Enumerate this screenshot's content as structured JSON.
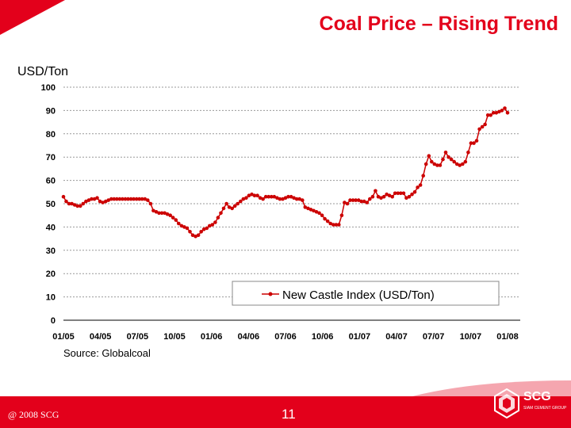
{
  "slide": {
    "title": "Coal Price – Rising Trend",
    "source": "Source: Globalcoal",
    "copyright": "@ 2008 SCG",
    "page_number": "11",
    "logo_text": "SCG",
    "logo_subtext": "SIAM CEMENT GROUP"
  },
  "colors": {
    "accent": "#e3001b",
    "series": "#cc0000",
    "grid": "#999999"
  },
  "chart_data": {
    "type": "line",
    "ylabel": "USD/Ton",
    "xlabel": "",
    "ylim": [
      0,
      100
    ],
    "yticks": [
      0,
      10,
      20,
      30,
      40,
      50,
      60,
      70,
      80,
      90,
      100
    ],
    "xticks": [
      "01/05",
      "04/05",
      "07/05",
      "10/05",
      "01/06",
      "04/06",
      "07/06",
      "10/06",
      "01/07",
      "04/07",
      "07/07",
      "10/07",
      "01/08"
    ],
    "grid": "horizontal dashed",
    "legend_position": "bottom-right",
    "series": [
      {
        "name": "New Castle Index (USD/Ton)",
        "x_start": "01/05",
        "x_step": "weekly",
        "values": [
          53,
          51,
          50,
          50,
          49.5,
          49,
          49,
          50,
          51,
          51.5,
          52,
          52,
          52.5,
          51,
          50.5,
          51,
          51.5,
          52,
          52,
          52,
          52,
          52,
          52,
          52,
          52,
          52,
          52,
          52,
          52,
          52,
          51.5,
          50,
          47,
          46.5,
          46,
          46,
          46,
          45.5,
          45,
          44,
          43,
          41.5,
          40.5,
          40,
          39.5,
          38,
          36.5,
          36,
          36.5,
          38,
          39,
          39.5,
          40.5,
          41,
          42,
          44,
          46,
          48,
          50,
          48.5,
          48,
          49,
          50,
          51,
          52,
          52.5,
          53.5,
          54,
          53.5,
          53.5,
          52.5,
          52,
          53,
          53,
          53,
          53,
          52.5,
          52,
          52,
          52.5,
          53,
          53,
          52.5,
          52,
          52,
          51.5,
          48.5,
          48,
          47.5,
          47,
          46.5,
          46,
          45,
          43.5,
          42.5,
          41.5,
          41,
          41,
          41,
          45,
          50.5,
          50,
          51.5,
          51.5,
          51.5,
          51.5,
          51,
          51,
          50.5,
          52,
          53,
          55.5,
          53,
          52.5,
          53,
          54,
          53.5,
          53,
          54.5,
          54.5,
          54.5,
          54.5,
          52.5,
          53,
          54,
          55,
          57,
          58,
          62,
          67,
          70.5,
          68,
          67,
          66.5,
          66.5,
          69,
          72,
          70,
          69,
          68,
          67,
          66.5,
          67,
          68,
          72,
          76,
          76,
          77,
          82,
          83,
          84,
          88,
          88,
          89,
          89,
          89.5,
          90,
          91,
          89
        ]
      }
    ]
  }
}
